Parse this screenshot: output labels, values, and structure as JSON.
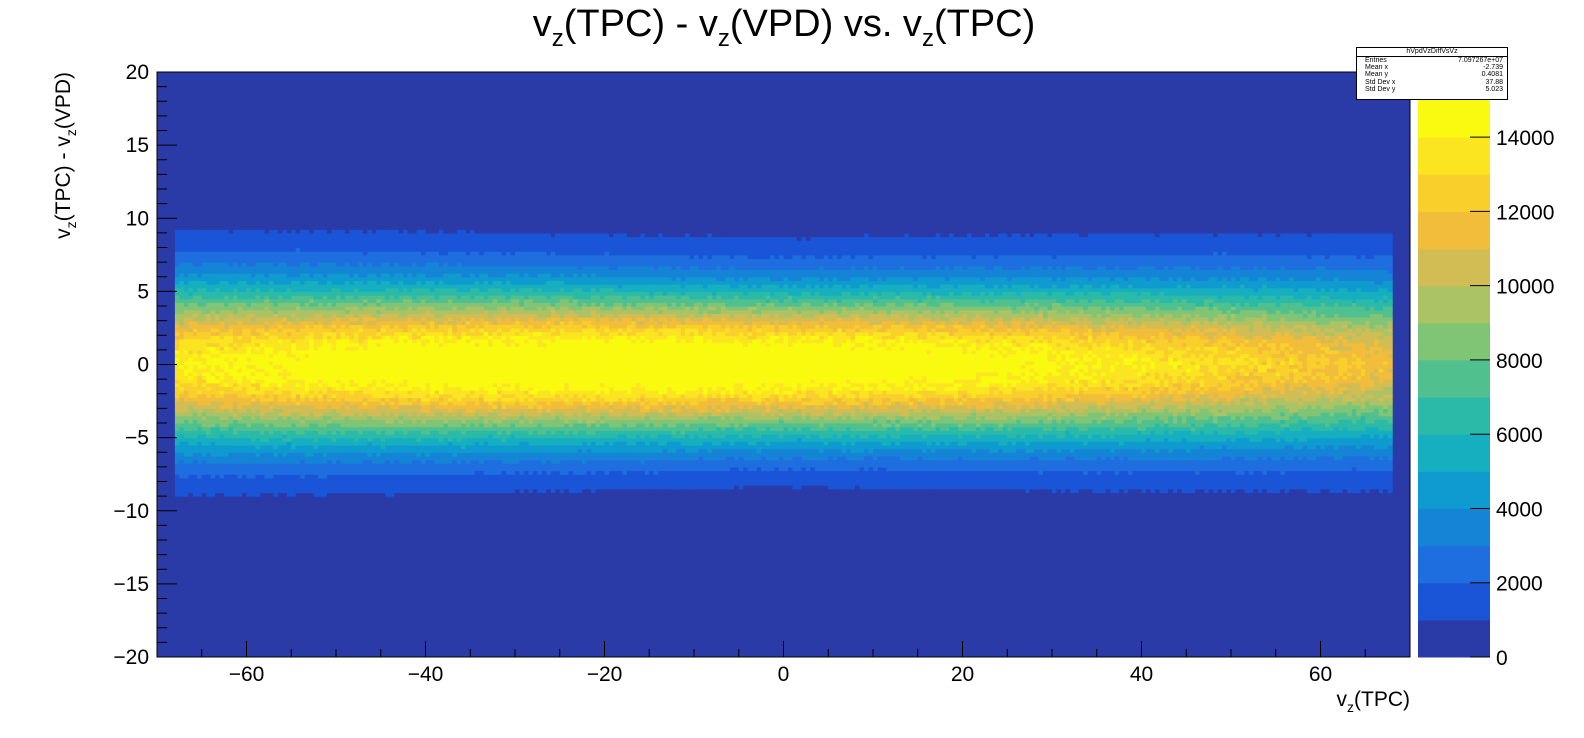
{
  "chart_data": {
    "type": "heatmap",
    "title": "v_z(TPC) - v_z(VPD) vs. v_z(TPC)",
    "title_parts": {
      "a": "v",
      "a_sub": "z",
      "b": "(TPC) - v",
      "b_sub": "z",
      "c": "(VPD) vs. v",
      "c_sub": "z",
      "d": "(TPC)"
    },
    "xlabel": "v_z(TPC)",
    "xlabel_parts": {
      "a": "v",
      "a_sub": "z",
      "b": "(TPC)"
    },
    "ylabel": "v_z(TPC) - v_z(VPD)",
    "ylabel_parts": {
      "a": "v",
      "a_sub": "z",
      "b": "(TPC) - v",
      "b_sub": "z",
      "c": "(VPD)"
    },
    "xlim": [
      -70,
      70
    ],
    "ylim": [
      -20,
      20
    ],
    "x_ticks": [
      -60,
      -40,
      -20,
      0,
      20,
      40,
      60
    ],
    "x_tick_labels": [
      "−60",
      "−40",
      "−20",
      "0",
      "20",
      "40",
      "60"
    ],
    "y_ticks": [
      -20,
      -15,
      -10,
      -5,
      0,
      5,
      10,
      15,
      20
    ],
    "y_tick_labels": [
      "−20",
      "−15",
      "−10",
      "−5",
      "0",
      "5",
      "10",
      "15",
      "20"
    ],
    "z_range": [
      0,
      15000
    ],
    "z_ticks": [
      0,
      2000,
      4000,
      6000,
      8000,
      10000,
      12000,
      14000
    ],
    "z_tick_labels": [
      "0",
      "2000",
      "4000",
      "6000",
      "8000",
      "10000",
      "12000",
      "14000"
    ],
    "filled_x_range": [
      -68,
      68
    ],
    "peak": {
      "x": -15,
      "y": 0,
      "z": 15000
    },
    "band_sigma_y": 3.4,
    "colormap": [
      "#2a3aa6",
      "#1a55d8",
      "#1f6ee0",
      "#1584d6",
      "#0f9bcf",
      "#16afc0",
      "#2bbaa8",
      "#4fc08e",
      "#80c476",
      "#abc265",
      "#d2bd55",
      "#f1bd3a",
      "#f9cf2c",
      "#fbe521",
      "#f9fa0f"
    ],
    "grid": false,
    "legend": "none",
    "stats": {
      "name": "hVpdVzDiffVsVz",
      "rows": [
        {
          "label": "Entries",
          "value": "7.097267e+07"
        },
        {
          "label": "Mean x",
          "value": "-2.739"
        },
        {
          "label": "Mean y",
          "value": "0.4081"
        },
        {
          "label": "Std Dev x",
          "value": "37.88"
        },
        {
          "label": "Std Dev y",
          "value": "5.023"
        }
      ]
    }
  }
}
